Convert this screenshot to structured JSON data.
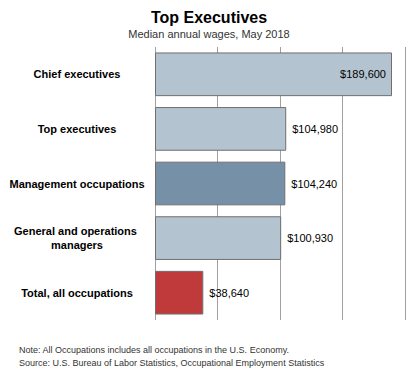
{
  "chart_data": {
    "type": "bar",
    "orientation": "horizontal",
    "title": "Top Executives",
    "subtitle": "Median annual wages, May 2018",
    "categories": [
      "Chief executives",
      "Top executives",
      "Management occupations",
      "General and operations managers",
      "Total, all occupations"
    ],
    "values": [
      189600,
      104980,
      104240,
      100930,
      38640
    ],
    "value_labels": [
      "$189,600",
      "$104,980",
      "$104,240",
      "$100,930",
      "$38,640"
    ],
    "data_labels": true,
    "colors": [
      "#b4c3d0",
      "#b4c3d0",
      "#7690a8",
      "#b4c3d0",
      "#c0393b"
    ],
    "xlim": [
      0,
      200000
    ],
    "xticks": [
      0,
      50000,
      100000,
      150000,
      200000
    ],
    "grid": true,
    "tick_labels": false,
    "note": "Note: All Occupations includes all occupations in the U.S. Economy.",
    "source": "Source: U.S. Bureau of Labor Statistics, Occupational Employment Statistics"
  }
}
